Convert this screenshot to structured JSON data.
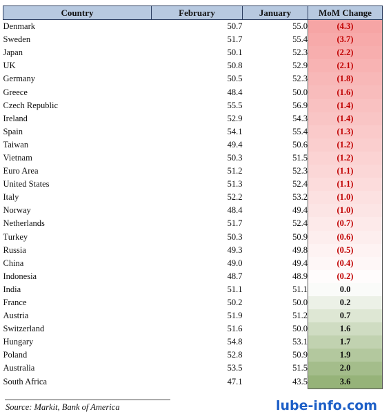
{
  "chart_data": {
    "type": "table",
    "columns": [
      "Country",
      "February",
      "January",
      "MoM Change"
    ],
    "rows": [
      {
        "country": "Denmark",
        "february": "50.7",
        "january": "55.0",
        "mom": "(4.3)",
        "value": -4.3
      },
      {
        "country": "Sweden",
        "february": "51.7",
        "january": "55.4",
        "mom": "(3.7)",
        "value": -3.7
      },
      {
        "country": "Japan",
        "february": "50.1",
        "january": "52.3",
        "mom": "(2.2)",
        "value": -2.2
      },
      {
        "country": "UK",
        "february": "50.8",
        "january": "52.9",
        "mom": "(2.1)",
        "value": -2.1
      },
      {
        "country": "Germany",
        "february": "50.5",
        "january": "52.3",
        "mom": "(1.8)",
        "value": -1.8
      },
      {
        "country": "Greece",
        "february": "48.4",
        "january": "50.0",
        "mom": "(1.6)",
        "value": -1.6
      },
      {
        "country": "Czech Republic",
        "february": "55.5",
        "january": "56.9",
        "mom": "(1.4)",
        "value": -1.4
      },
      {
        "country": "Ireland",
        "february": "52.9",
        "january": "54.3",
        "mom": "(1.4)",
        "value": -1.4
      },
      {
        "country": "Spain",
        "february": "54.1",
        "january": "55.4",
        "mom": "(1.3)",
        "value": -1.3
      },
      {
        "country": "Taiwan",
        "february": "49.4",
        "january": "50.6",
        "mom": "(1.2)",
        "value": -1.2
      },
      {
        "country": "Vietnam",
        "february": "50.3",
        "january": "51.5",
        "mom": "(1.2)",
        "value": -1.2
      },
      {
        "country": "Euro Area",
        "february": "51.2",
        "january": "52.3",
        "mom": "(1.1)",
        "value": -1.1
      },
      {
        "country": "United States",
        "february": "51.3",
        "january": "52.4",
        "mom": "(1.1)",
        "value": -1.1
      },
      {
        "country": "Italy",
        "february": "52.2",
        "january": "53.2",
        "mom": "(1.0)",
        "value": -1.0
      },
      {
        "country": "Norway",
        "february": "48.4",
        "january": "49.4",
        "mom": "(1.0)",
        "value": -1.0
      },
      {
        "country": "Netherlands",
        "february": "51.7",
        "january": "52.4",
        "mom": "(0.7)",
        "value": -0.7
      },
      {
        "country": "Turkey",
        "february": "50.3",
        "january": "50.9",
        "mom": "(0.6)",
        "value": -0.6
      },
      {
        "country": "Russia",
        "february": "49.3",
        "january": "49.8",
        "mom": "(0.5)",
        "value": -0.5
      },
      {
        "country": "China",
        "february": "49.0",
        "january": "49.4",
        "mom": "(0.4)",
        "value": -0.4
      },
      {
        "country": "Indonesia",
        "february": "48.7",
        "january": "48.9",
        "mom": "(0.2)",
        "value": -0.2
      },
      {
        "country": "India",
        "february": "51.1",
        "january": "51.1",
        "mom": "0.0",
        "value": 0.0
      },
      {
        "country": "France",
        "february": "50.2",
        "january": "50.0",
        "mom": "0.2",
        "value": 0.2
      },
      {
        "country": "Austria",
        "february": "51.9",
        "january": "51.2",
        "mom": "0.7",
        "value": 0.7
      },
      {
        "country": "Switzerland",
        "february": "51.6",
        "january": "50.0",
        "mom": "1.6",
        "value": 1.6
      },
      {
        "country": "Hungary",
        "february": "54.8",
        "january": "53.1",
        "mom": "1.7",
        "value": 1.7
      },
      {
        "country": "Poland",
        "february": "52.8",
        "january": "50.9",
        "mom": "1.9",
        "value": 1.9
      },
      {
        "country": "Australia",
        "february": "53.5",
        "january": "51.5",
        "mom": "2.0",
        "value": 2.0
      },
      {
        "country": "South Africa",
        "february": "47.1",
        "january": "43.5",
        "mom": "3.6",
        "value": 3.6
      }
    ],
    "colors": {
      "negative_max": "#f6a3a3",
      "neutral": "#ffffff",
      "positive_max": "#8fae70",
      "negative_text": "#c00000",
      "header_fill": "#b7c9e0"
    }
  },
  "source": "Source: Markit, Bank of America",
  "watermark": "lube-info.com"
}
